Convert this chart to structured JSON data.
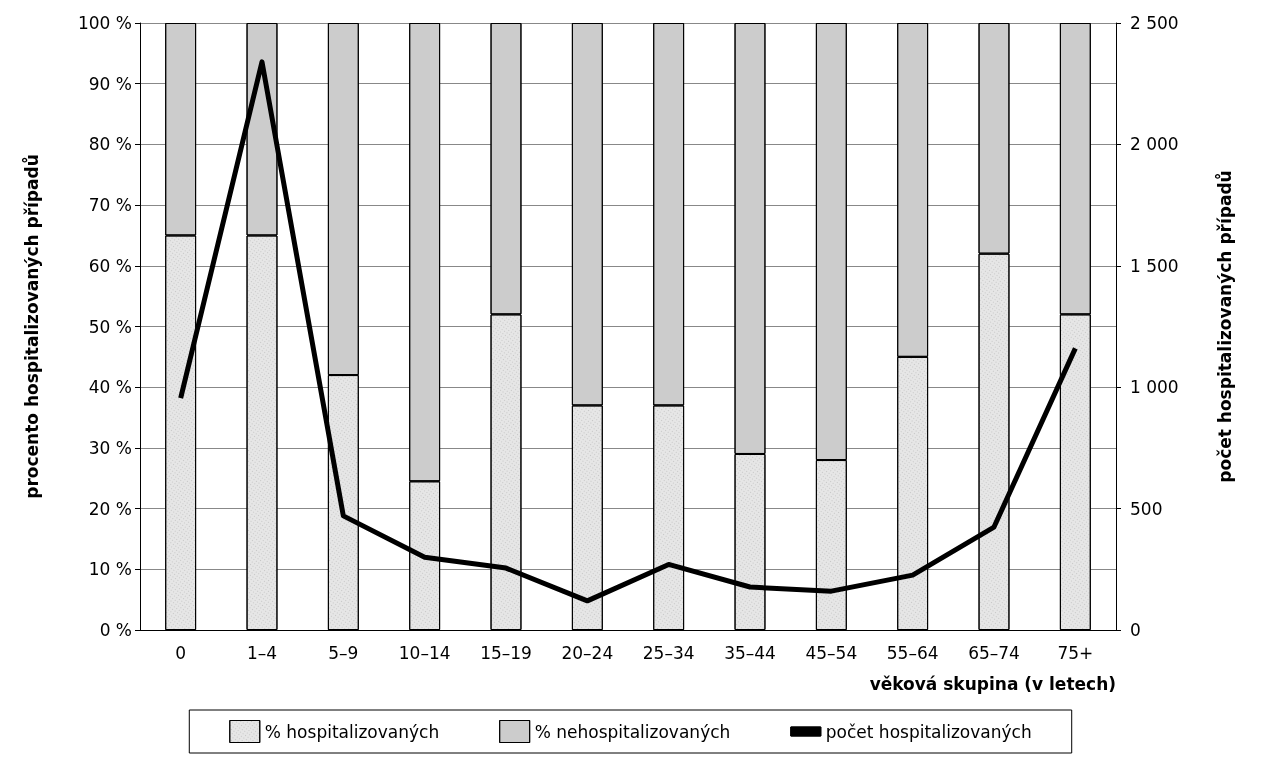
{
  "chart_data": {
    "type": "bar",
    "stacked": true,
    "xlabel": "věková skupina (v letech)",
    "ylabel": "procento hospitalizovaných případů",
    "y2label": "počet hospitalizovaných případů",
    "categories": [
      "0",
      "1–4",
      "5–9",
      "10–14",
      "15–19",
      "20–24",
      "25–34",
      "35–44",
      "45–54",
      "55–64",
      "65–74",
      "75+"
    ],
    "series": [
      {
        "name": "% hospitalizovaných",
        "color": "#e6e6e6",
        "values": [
          65,
          65,
          42,
          24.5,
          52,
          37,
          37,
          29,
          28,
          45,
          62,
          52
        ]
      },
      {
        "name": "% nehospitalizovaných",
        "color": "#cccccc",
        "values": [
          35,
          35,
          58,
          75.5,
          48,
          63,
          63,
          71,
          72,
          55,
          38,
          48
        ]
      },
      {
        "name": "počet hospitalizovaných",
        "type": "line",
        "axis": "y2",
        "color": "#000000",
        "values": [
          955,
          2340,
          470,
          300,
          255,
          120,
          270,
          177,
          160,
          226,
          424,
          1160
        ]
      }
    ],
    "ylim": [
      0,
      100
    ],
    "yticks": [
      {
        "value": 0,
        "label": "0 %"
      },
      {
        "value": 10,
        "label": "10 %"
      },
      {
        "value": 20,
        "label": "20 %"
      },
      {
        "value": 30,
        "label": "30 %"
      },
      {
        "value": 40,
        "label": "40 %"
      },
      {
        "value": 50,
        "label": "50 %"
      },
      {
        "value": 60,
        "label": "60 %"
      },
      {
        "value": 70,
        "label": "70 %"
      },
      {
        "value": 80,
        "label": "80 %"
      },
      {
        "value": 90,
        "label": "90 %"
      },
      {
        "value": 100,
        "label": "100 %"
      }
    ],
    "y2lim": [
      0,
      2500
    ],
    "y2ticks": [
      0,
      500,
      {
        "value": 1000,
        "label": "1 000"
      },
      {
        "value": 1500,
        "label": "1 500"
      },
      {
        "value": 2000,
        "label": "2 000"
      },
      {
        "value": 2500,
        "label": "2 500"
      }
    ],
    "grid": "y",
    "legend": "bottom",
    "marker": "none",
    "line_style": "solid"
  }
}
